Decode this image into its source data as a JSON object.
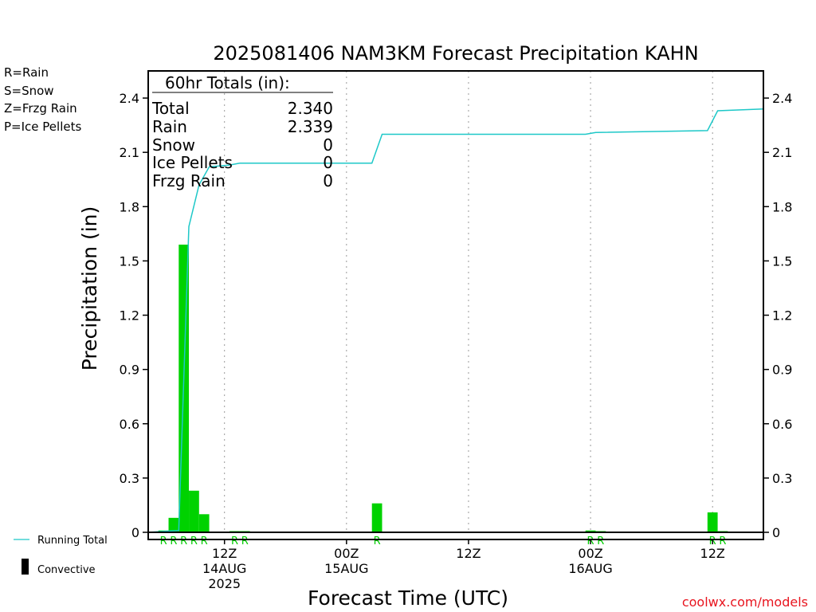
{
  "chart_data": {
    "type": "bar",
    "title": "2025081406 NAM3KM Forecast Precipitation KAHN",
    "xlabel": "Forecast Time (UTC)",
    "ylabel": "Precipitation (in)",
    "ylim": [
      0,
      2.55
    ],
    "y_ticks": [
      "0",
      "0.3",
      "0.6",
      "0.9",
      "1.2",
      "1.5",
      "1.8",
      "2.1",
      "2.4"
    ],
    "x_range_hours": [
      -1.5,
      59
    ],
    "x_ticks": [
      {
        "hour": 6,
        "lines": [
          "12Z",
          "14AUG",
          "2025"
        ]
      },
      {
        "hour": 18,
        "lines": [
          "00Z",
          "15AUG"
        ]
      },
      {
        "hour": 30,
        "lines": [
          "12Z"
        ]
      },
      {
        "hour": 42,
        "lines": [
          "00Z",
          "16AUG"
        ]
      },
      {
        "hour": 54,
        "lines": [
          "12Z"
        ]
      }
    ],
    "grid": true,
    "legend_types": [
      {
        "label": "R=Rain",
        "color": "#00cc00"
      },
      {
        "label": "S=Snow",
        "color": "#3c50dc"
      },
      {
        "label": "Z=Frzg Rain",
        "color": "#f07d28"
      },
      {
        "label": "P=Ice Pellets",
        "color": "#e61e8c"
      }
    ],
    "legend_series": {
      "running_total": {
        "label": "Running Total",
        "color": "#1ec8c8"
      },
      "convective": {
        "label": "Convective",
        "color": "#000000"
      }
    },
    "totals": {
      "header": "60hr Totals (in):",
      "rows": [
        {
          "label": "Total",
          "value": "2.340"
        },
        {
          "label": "Rain",
          "value": "2.339"
        },
        {
          "label": "Snow",
          "value": "0"
        },
        {
          "label": "Ice Pellets",
          "value": "0"
        },
        {
          "label": "Frzg Rain",
          "value": "0"
        }
      ]
    },
    "bars": [
      {
        "hour": 0,
        "value": 0.01,
        "type": "R"
      },
      {
        "hour": 1,
        "value": 0.08,
        "type": "R"
      },
      {
        "hour": 2,
        "value": 1.59,
        "type": "R"
      },
      {
        "hour": 3,
        "value": 0.23,
        "type": "R"
      },
      {
        "hour": 4,
        "value": 0.1,
        "type": "R"
      },
      {
        "hour": 7,
        "value": 0.005,
        "type": "R"
      },
      {
        "hour": 8,
        "value": 0.005,
        "type": "R"
      },
      {
        "hour": 21,
        "value": 0.16,
        "type": "R"
      },
      {
        "hour": 42,
        "value": 0.01,
        "type": "R"
      },
      {
        "hour": 43,
        "value": 0.005,
        "type": "R"
      },
      {
        "hour": 54,
        "value": 0.11,
        "type": "R"
      },
      {
        "hour": 55,
        "value": 0.005,
        "type": "R"
      }
    ],
    "running_total": [
      [
        -1.5,
        0
      ],
      [
        1.5,
        0.01
      ],
      [
        2.5,
        1.69
      ],
      [
        3.5,
        1.92
      ],
      [
        4.5,
        2.02
      ],
      [
        6.5,
        2.03
      ],
      [
        7.5,
        2.04
      ],
      [
        20.5,
        2.04
      ],
      [
        21.5,
        2.2
      ],
      [
        41.5,
        2.2
      ],
      [
        42.5,
        2.21
      ],
      [
        53.5,
        2.22
      ],
      [
        54.5,
        2.33
      ],
      [
        59,
        2.34
      ]
    ]
  },
  "watermark": "coolwx.com/models"
}
